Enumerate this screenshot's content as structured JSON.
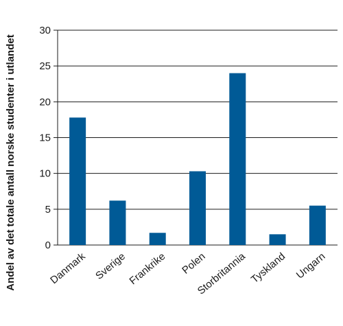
{
  "chart_data": {
    "type": "bar",
    "categories": [
      "Danmark",
      "Sverige",
      "Frankrike",
      "Polen",
      "Storbritannia",
      "Tyskland",
      "Ungarn"
    ],
    "values": [
      17.8,
      6.2,
      1.7,
      10.3,
      24.0,
      1.5,
      5.5
    ],
    "ylabel": "Andel av det totale antall norske studenter i utlandet",
    "xlabel": "",
    "ylim": [
      0,
      30
    ],
    "yticks": [
      "0",
      "5",
      "10",
      "15",
      "20",
      "25",
      "30"
    ],
    "grid": true,
    "bar_color": "#005a96"
  }
}
